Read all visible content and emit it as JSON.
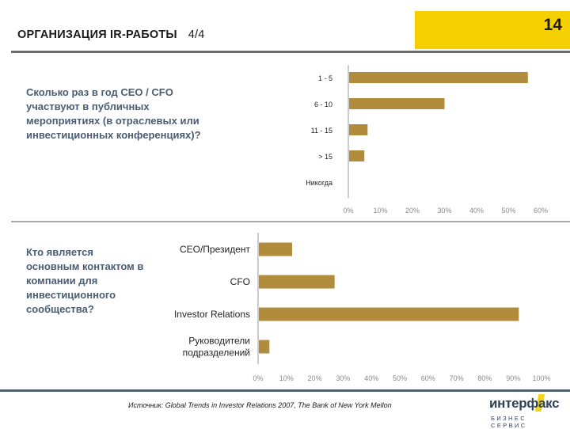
{
  "header": {
    "title": "ОРГАНИЗАЦИЯ IR-РАБОТЫ",
    "part": "4/4",
    "page_number": "14"
  },
  "questions": [
    "Сколько раз в год CEO / CFO участвуют в публичных мероприятиях (в отраслевых или инвестиционных конференциях)?",
    "Кто является основным контактом в компании для инвестиционного сообщества?"
  ],
  "footer": {
    "source": "Источник: Global Trends in Investor Relations 2007, The Bank of New York Mellon",
    "logo_text": "интерфакс",
    "logo_subtitle": "БИЗНЕС СЕРВИС"
  },
  "colors": {
    "bar": "#b08c3c",
    "accent": "#f4d000",
    "question_text": "#4b5d72"
  },
  "chart_data": [
    {
      "type": "bar",
      "orientation": "horizontal",
      "categories": [
        "1 - 5",
        "6 - 10",
        "11 - 15",
        "> 15",
        "Никогда"
      ],
      "values": [
        56,
        30,
        6,
        5,
        0
      ],
      "xlim": [
        0,
        60
      ],
      "xticks": [
        "0%",
        "10%",
        "20%",
        "30%",
        "40%",
        "50%",
        "60%"
      ],
      "title": "",
      "xlabel": "",
      "ylabel": ""
    },
    {
      "type": "bar",
      "orientation": "horizontal",
      "categories": [
        "CEO/Президент",
        "CFO",
        "Investor Relations",
        "Руководители подразделений"
      ],
      "values": [
        12,
        27,
        92,
        4
      ],
      "xlim": [
        0,
        100
      ],
      "xticks": [
        "0%",
        "10%",
        "20%",
        "30%",
        "40%",
        "50%",
        "60%",
        "70%",
        "80%",
        "90%",
        "100%"
      ],
      "title": "",
      "xlabel": "",
      "ylabel": ""
    }
  ]
}
